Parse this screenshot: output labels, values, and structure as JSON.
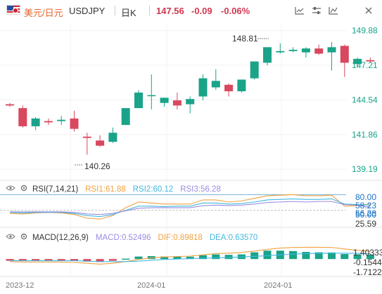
{
  "header": {
    "symbol_name": "美元/日元",
    "symbol_code": "USDJPY",
    "period": "日K",
    "price": "147.56",
    "change": "-0.09",
    "change_pct": "-0.06%",
    "tools": [
      "indicator-icon",
      "settings-sliders-icon",
      "compare-icon",
      "close-icon"
    ]
  },
  "rsi": {
    "name": "RSI(7,14,21)",
    "rsi1": "RSI1:61.88",
    "rsi2": "RSI2:60.12",
    "rsi3": "RSI3:56.28",
    "axis_labels": [
      "80.00",
      "58.23",
      "56.28",
      "50.00",
      "25.59"
    ],
    "colors": {
      "rsi1": "#f0a040",
      "rsi2": "#40b8e0",
      "rsi3": "#9a8ce0"
    }
  },
  "macd": {
    "name": "MACD(12,26,9)",
    "macd": "MACD:0.52496",
    "dif": "DIF:0.89818",
    "dea": "DEA:0.63570",
    "axis_labels": [
      "1.40333",
      "-0.15445",
      "-1.71224"
    ],
    "colors": {
      "macd": "#9a8ce0",
      "dif": "#f0a040",
      "dea": "#40b8e0"
    }
  },
  "x_axis": {
    "labels": [
      "2023-12",
      "2024-01",
      "2024-01"
    ]
  },
  "chart_data": {
    "type": "candlestick",
    "y_ticks": [
      149.88,
      147.21,
      144.54,
      141.86,
      139.19
    ],
    "ylim": [
      138.6,
      150.4
    ],
    "annotations": {
      "high": "148.81",
      "low": "140.26"
    },
    "colors": {
      "up": "#1aa389",
      "down": "#d8485e"
    },
    "candles": [
      {
        "o": 144.2,
        "h": 144.3,
        "c": 144.1,
        "l": 144.0
      },
      {
        "o": 143.9,
        "h": 144.1,
        "c": 142.5,
        "l": 142.4
      },
      {
        "o": 142.5,
        "h": 143.2,
        "c": 143.1,
        "l": 142.2
      },
      {
        "o": 142.9,
        "h": 143.1,
        "c": 142.8,
        "l": 142.6
      },
      {
        "o": 142.9,
        "h": 143.3,
        "c": 143.0,
        "l": 142.6
      },
      {
        "o": 143.1,
        "h": 143.7,
        "c": 142.3,
        "l": 142.1
      },
      {
        "o": 141.7,
        "h": 142.0,
        "c": 141.6,
        "l": 140.3
      },
      {
        "o": 141.4,
        "h": 141.8,
        "c": 141.0,
        "l": 140.9
      },
      {
        "o": 141.3,
        "h": 142.4,
        "c": 142.0,
        "l": 141.2
      },
      {
        "o": 142.6,
        "h": 143.9,
        "c": 143.9,
        "l": 142.6
      },
      {
        "o": 143.9,
        "h": 145.3,
        "c": 145.1,
        "l": 143.9
      },
      {
        "o": 144.9,
        "h": 146.5,
        "c": 144.9,
        "l": 143.8
      },
      {
        "o": 144.3,
        "h": 144.7,
        "c": 144.7,
        "l": 144.0
      },
      {
        "o": 144.5,
        "h": 145.1,
        "c": 144.1,
        "l": 143.8
      },
      {
        "o": 144.2,
        "h": 144.8,
        "c": 144.6,
        "l": 143.5
      },
      {
        "o": 144.8,
        "h": 146.5,
        "c": 146.2,
        "l": 144.5
      },
      {
        "o": 145.5,
        "h": 146.9,
        "c": 146.0,
        "l": 145.3
      },
      {
        "o": 145.7,
        "h": 145.8,
        "c": 145.2,
        "l": 144.8
      },
      {
        "o": 145.2,
        "h": 146.1,
        "c": 146.1,
        "l": 145.1
      },
      {
        "o": 146.2,
        "h": 147.5,
        "c": 147.5,
        "l": 146.1
      },
      {
        "o": 147.4,
        "h": 148.6,
        "c": 148.6,
        "l": 147.2
      },
      {
        "o": 148.2,
        "h": 148.9,
        "c": 148.3,
        "l": 148.1
      },
      {
        "o": 148.3,
        "h": 148.6,
        "c": 148.4,
        "l": 148.2
      },
      {
        "o": 148.2,
        "h": 148.6,
        "c": 148.5,
        "l": 147.8
      },
      {
        "o": 148.5,
        "h": 148.8,
        "c": 148.1,
        "l": 148.0
      },
      {
        "o": 148.2,
        "h": 149.0,
        "c": 148.6,
        "l": 146.8
      },
      {
        "o": 148.7,
        "h": 148.8,
        "c": 147.4,
        "l": 146.3
      },
      {
        "o": 147.3,
        "h": 147.8,
        "c": 147.7,
        "l": 147.0
      },
      {
        "o": 147.6,
        "h": 147.8,
        "c": 147.5,
        "l": 147.4
      }
    ],
    "rsi_series": {
      "rsi1": [
        44,
        43,
        45,
        46,
        45,
        42,
        35,
        33,
        40,
        55,
        66,
        64,
        62,
        62,
        62,
        70,
        70,
        66,
        68,
        73,
        78,
        79,
        80,
        78,
        78,
        79,
        58,
        59,
        62
      ],
      "rsi2": [
        46,
        45,
        46,
        46,
        46,
        44,
        40,
        38,
        42,
        50,
        58,
        58,
        57,
        58,
        58,
        64,
        64,
        62,
        63,
        66,
        70,
        71,
        72,
        71,
        71,
        72,
        62,
        61,
        60
      ],
      "rsi3": [
        47,
        47,
        47,
        47,
        47,
        46,
        43,
        42,
        44,
        49,
        54,
        55,
        55,
        55,
        55,
        59,
        60,
        59,
        60,
        62,
        65,
        66,
        67,
        66,
        67,
        67,
        61,
        60,
        56
      ]
    },
    "macd_series": {
      "hist": [
        -0.2,
        -0.2,
        -0.2,
        -0.2,
        -0.2,
        -0.2,
        -0.3,
        -0.35,
        -0.2,
        0.05,
        0.3,
        0.35,
        0.3,
        0.3,
        0.28,
        0.45,
        0.55,
        0.5,
        0.55,
        0.8,
        1.0,
        1.0,
        0.95,
        0.85,
        0.8,
        0.78,
        0.6,
        0.55,
        0.52
      ],
      "dif": [
        -0.3,
        -0.35,
        -0.35,
        -0.35,
        -0.35,
        -0.4,
        -0.5,
        -0.6,
        -0.5,
        -0.3,
        -0.05,
        0.15,
        0.25,
        0.3,
        0.35,
        0.5,
        0.65,
        0.7,
        0.78,
        0.95,
        1.15,
        1.3,
        1.38,
        1.4,
        1.4,
        1.38,
        1.2,
        1.05,
        0.9
      ],
      "dea": [
        -0.2,
        -0.2,
        -0.2,
        -0.2,
        -0.2,
        -0.2,
        -0.25,
        -0.3,
        -0.3,
        -0.3,
        -0.25,
        -0.15,
        -0.05,
        0.0,
        0.05,
        0.1,
        0.15,
        0.2,
        0.25,
        0.32,
        0.4,
        0.5,
        0.58,
        0.65,
        0.68,
        0.7,
        0.7,
        0.68,
        0.64
      ]
    }
  }
}
